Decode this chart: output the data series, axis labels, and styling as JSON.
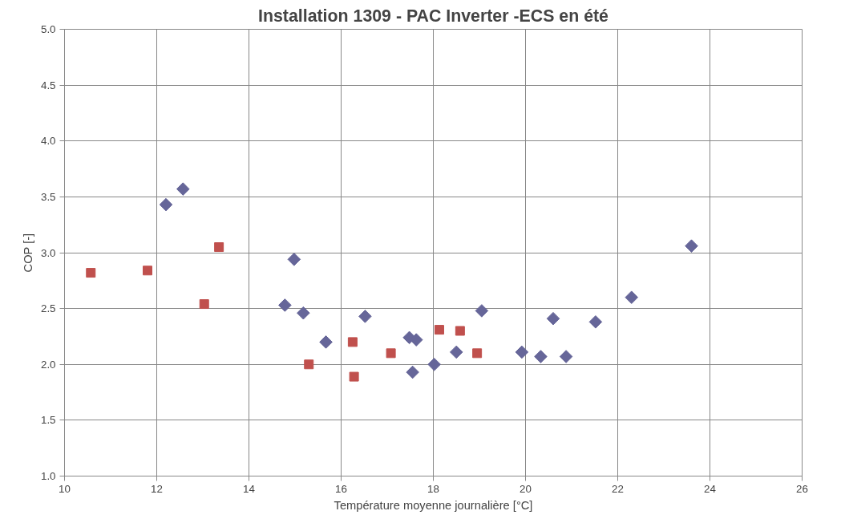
{
  "chart_data": {
    "type": "scatter",
    "title": "Installation 1309 - PAC Inverter -ECS en été",
    "xlabel": "Température moyenne journalière [°C]",
    "ylabel": "COP [-]",
    "xlim": [
      10,
      26
    ],
    "xticks": [
      10,
      12,
      14,
      16,
      18,
      20,
      22,
      24,
      26
    ],
    "ylim": [
      1.0,
      5.0
    ],
    "yticks": [
      {
        "value": 1.0,
        "label": "1.0"
      },
      {
        "value": 1.5,
        "label": "1.5"
      },
      {
        "value": 2.0,
        "label": "2.0"
      },
      {
        "value": 2.5,
        "label": "2.5"
      },
      {
        "value": 3.0,
        "label": "3.0"
      },
      {
        "value": 3.5,
        "label": "3.5"
      },
      {
        "value": 4.0,
        "label": "4.0"
      },
      {
        "value": 4.5,
        "label": "4.5"
      },
      {
        "value": 5.0,
        "label": "5.0"
      }
    ],
    "grid": true,
    "series": [
      {
        "color": "#666699",
        "marker": "diamond",
        "x": [
          12.2,
          12.57,
          14.78,
          14.98,
          15.18,
          15.67,
          16.52,
          17.48,
          17.63,
          17.55,
          18.02,
          18.5,
          19.05,
          19.92,
          20.33,
          20.6,
          20.88,
          21.52,
          22.3,
          23.6
        ],
        "values": [
          3.43,
          3.57,
          2.53,
          2.94,
          2.46,
          2.2,
          2.43,
          2.24,
          2.22,
          1.93,
          2.0,
          2.11,
          2.48,
          2.11,
          2.07,
          2.41,
          2.07,
          2.38,
          2.6,
          3.06
        ]
      },
      {
        "color": "#c0504d",
        "marker": "square",
        "x": [
          10.57,
          11.8,
          13.03,
          13.35,
          15.3,
          16.25,
          16.28,
          17.08,
          18.13,
          18.58,
          18.95
        ],
        "values": [
          2.82,
          2.84,
          2.54,
          3.05,
          2.0,
          2.2,
          1.89,
          2.1,
          2.31,
          2.3,
          2.1
        ]
      }
    ]
  }
}
